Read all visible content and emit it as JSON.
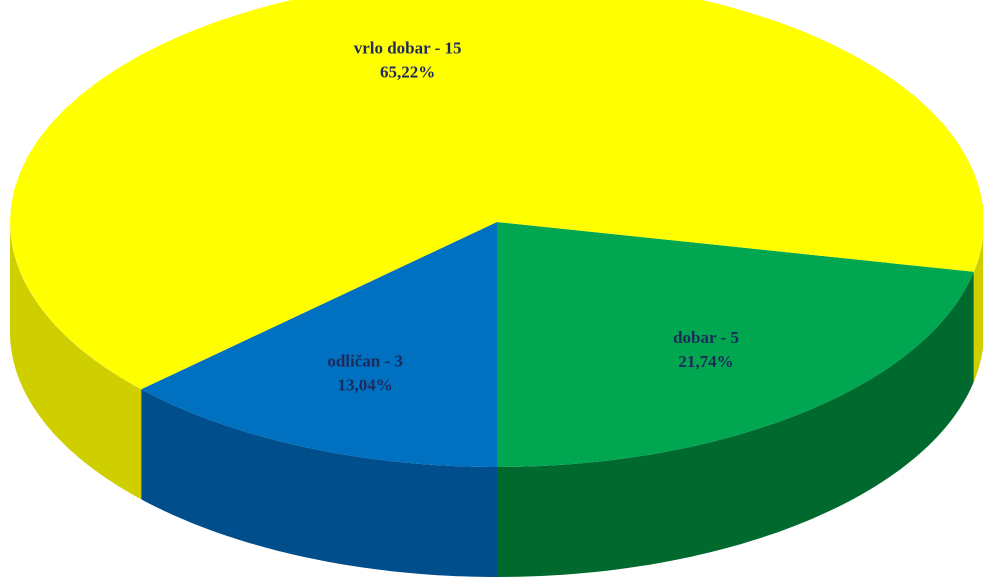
{
  "chart_data": {
    "type": "pie",
    "categories": [
      "dobar - 5",
      "odličan - 3",
      "vrlo dobar - 15"
    ],
    "values": [
      21.74,
      13.04,
      65.22
    ],
    "value_labels": [
      "21,74%",
      "13,04%",
      "65,22%"
    ],
    "colors": [
      "#00a650",
      "#0070c0",
      "#ffff00"
    ],
    "side_colors": [
      "#006a2e",
      "#004e8c",
      "#cfcf00"
    ]
  }
}
